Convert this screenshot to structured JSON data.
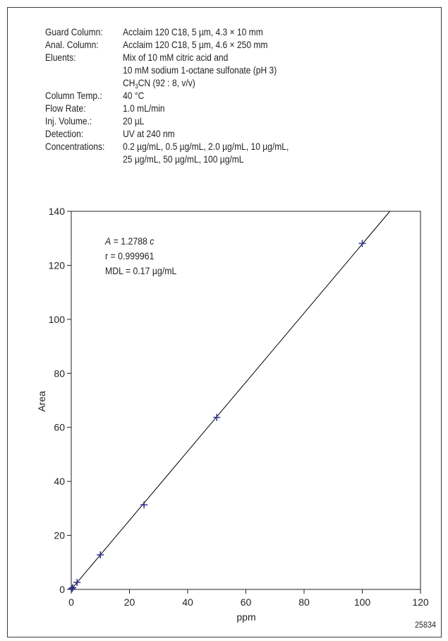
{
  "conditions": [
    {
      "label": "Guard Column:",
      "lines": [
        "Acclaim 120 C18, 5 µm, 4.3 × 10 mm"
      ]
    },
    {
      "label": "Anal. Column:",
      "lines": [
        "Acclaim 120 C18, 5 µm, 4.6 × 250 mm"
      ]
    },
    {
      "label": "Eluents:",
      "lines": [
        "Mix of 10 mM citric acid and",
        "10 mM sodium 1-octane sulfonate (pH 3)"
      ]
    },
    {
      "label": "Column Temp.:",
      "lines": [
        "40 °C"
      ]
    },
    {
      "label": "Flow Rate:",
      "lines": [
        "1.0 mL/min"
      ]
    },
    {
      "label": "Inj. Volume.:",
      "lines": [
        "20 µL"
      ]
    },
    {
      "label": "Detection:",
      "lines": [
        "UV at 240 nm"
      ]
    },
    {
      "label": "Concentrations:",
      "lines": [
        "0.2 µg/mL, 0.5 µg/mL, 2.0 µg/mL, 10 µg/mL,",
        "25 µg/mL, 50 µg/mL, 100 µg/mL"
      ]
    }
  ],
  "eluent_formula": {
    "prefix": "CH",
    "sub": "3",
    "suffix": "CN (92 : 8, v/v)"
  },
  "chart_data": {
    "type": "scatter",
    "xlabel": "ppm",
    "ylabel": "Area",
    "xlim": [
      0,
      120
    ],
    "ylim": [
      0,
      140
    ],
    "xticks": [
      0,
      20,
      40,
      60,
      80,
      100,
      120
    ],
    "yticks": [
      0,
      20,
      40,
      60,
      80,
      100,
      120,
      140
    ],
    "points": [
      {
        "x": 0.2,
        "y": 0.26
      },
      {
        "x": 0.5,
        "y": 0.64
      },
      {
        "x": 2.0,
        "y": 2.6
      },
      {
        "x": 10,
        "y": 12.8
      },
      {
        "x": 25,
        "y": 31.3
      },
      {
        "x": 50,
        "y": 63.7
      },
      {
        "x": 100,
        "y": 128.1
      }
    ],
    "fit": {
      "slope": 1.2788,
      "intercept": 0
    },
    "annotation": {
      "eq_A": "A",
      "eq_mid": " = 1.2788 ",
      "eq_c": "c",
      "r": "r = 0.999961",
      "mdl": "MDL = 0.17 µg/mL"
    },
    "grid": false,
    "marker_color": "#2e3192",
    "line_color": "#000000"
  },
  "figure_id": "25834"
}
